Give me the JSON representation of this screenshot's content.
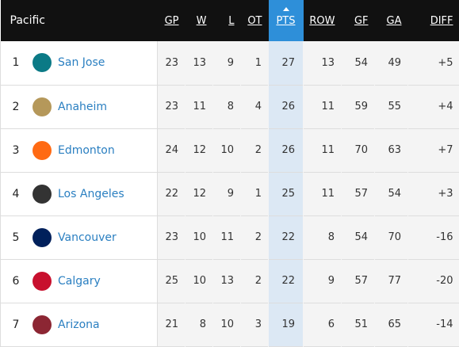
{
  "header": {
    "division": "Pacific",
    "columns": [
      "GP",
      "W",
      "L",
      "OT",
      "PTS",
      "ROW",
      "GF",
      "GA",
      "DIFF"
    ]
  },
  "table": {
    "rows": [
      {
        "rank": 1,
        "team": "San Jose",
        "stats": [
          23,
          13,
          9,
          1,
          27,
          13,
          54,
          49,
          "+5"
        ]
      },
      {
        "rank": 2,
        "team": "Anaheim",
        "stats": [
          23,
          11,
          8,
          4,
          26,
          11,
          59,
          55,
          "+4"
        ]
      },
      {
        "rank": 3,
        "team": "Edmonton",
        "stats": [
          24,
          12,
          10,
          2,
          26,
          11,
          70,
          63,
          "+7"
        ]
      },
      {
        "rank": 4,
        "team": "Los Angeles",
        "stats": [
          22,
          12,
          9,
          1,
          25,
          11,
          57,
          54,
          "+3"
        ]
      },
      {
        "rank": 5,
        "team": "Vancouver",
        "stats": [
          23,
          10,
          11,
          2,
          22,
          8,
          54,
          70,
          "-16"
        ]
      },
      {
        "rank": 6,
        "team": "Calgary",
        "stats": [
          25,
          10,
          13,
          2,
          22,
          9,
          57,
          77,
          "-20"
        ]
      },
      {
        "rank": 7,
        "team": "Arizona",
        "stats": [
          21,
          8,
          10,
          3,
          19,
          6,
          51,
          65,
          "-14"
        ]
      }
    ]
  }
}
